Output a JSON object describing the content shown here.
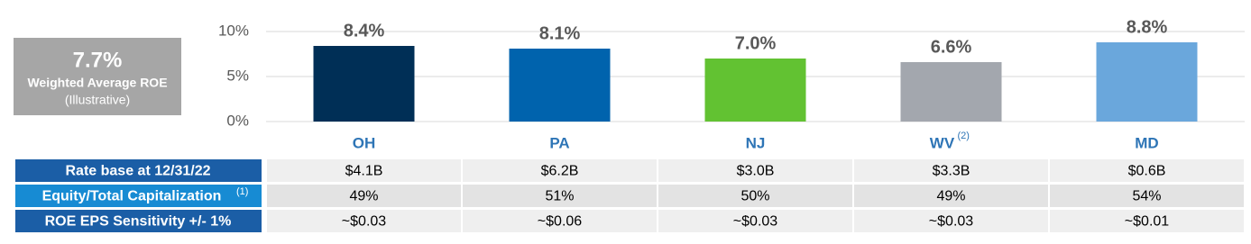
{
  "callout": {
    "value": "7.7%",
    "label": "Weighted Average ROE",
    "note": "(Illustrative)"
  },
  "chart_data": {
    "type": "bar",
    "categories": [
      "OH",
      "PA",
      "NJ",
      "WV",
      "MD"
    ],
    "category_notes": {
      "3": "(2)"
    },
    "values": [
      8.4,
      8.1,
      7.0,
      6.6,
      8.8
    ],
    "value_labels": [
      "8.4%",
      "8.1%",
      "7.0%",
      "6.6%",
      "8.8%"
    ],
    "colors": [
      "#002f56",
      "#0063ad",
      "#62c232",
      "#a3a7ae",
      "#6aa7dc"
    ],
    "ylim": [
      0,
      10
    ],
    "yticks": [
      {
        "value": 0,
        "label": "0%"
      },
      {
        "value": 5,
        "label": "5%"
      },
      {
        "value": 10,
        "label": "10%"
      }
    ],
    "grid": true
  },
  "table": {
    "rows": [
      {
        "header": "Rate base at 12/31/22",
        "cells": [
          "$4.1B",
          "$6.2B",
          "$3.0B",
          "$3.3B",
          "$0.6B"
        ]
      },
      {
        "header": "Equity/Total Capitalization",
        "header_note": "(1)",
        "cells": [
          "49%",
          "51%",
          "50%",
          "49%",
          "54%"
        ]
      },
      {
        "header": "ROE EPS Sensitivity +/- 1%",
        "cells": [
          "~$0.03",
          "~$0.06",
          "~$0.03",
          "~$0.03",
          "~$0.01"
        ]
      }
    ]
  }
}
